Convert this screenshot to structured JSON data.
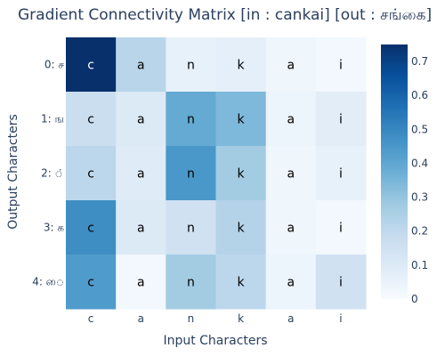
{
  "chart_data": {
    "type": "heatmap",
    "title": "Gradient Connectivity Matrix [in : cankai] [out : சங்கை]",
    "xlabel": "Input Characters",
    "ylabel": "Output Characters",
    "x_tick_labels": [
      "c",
      "a",
      "n",
      "k",
      "a",
      "i"
    ],
    "y_tick_labels": [
      "0: ச",
      "1: ங",
      "2: ்",
      "3: க",
      "4: ை"
    ],
    "cell_text": [
      "c",
      "a",
      "n",
      "k",
      "a",
      "i"
    ],
    "values": [
      [
        0.75,
        0.22,
        0.06,
        0.07,
        0.03,
        0.02
      ],
      [
        0.17,
        0.1,
        0.39,
        0.34,
        0.04,
        0.08
      ],
      [
        0.21,
        0.09,
        0.45,
        0.27,
        0.03,
        0.06
      ],
      [
        0.48,
        0.1,
        0.15,
        0.23,
        0.03,
        0.02
      ],
      [
        0.44,
        0.02,
        0.27,
        0.21,
        0.04,
        0.15
      ]
    ],
    "zlim": [
      0,
      0.75
    ],
    "colorbar_ticks": [
      0,
      0.1,
      0.2,
      0.3,
      0.4,
      0.5,
      0.6,
      0.7
    ],
    "colorscale": "Blues",
    "colorscale_stops": [
      [
        0.0,
        "#f7fbff"
      ],
      [
        0.125,
        "#deebf7"
      ],
      [
        0.25,
        "#c6dbef"
      ],
      [
        0.375,
        "#9ecae1"
      ],
      [
        0.5,
        "#6baed6"
      ],
      [
        0.625,
        "#4292c6"
      ],
      [
        0.75,
        "#2171b5"
      ],
      [
        0.875,
        "#08519c"
      ],
      [
        1.0,
        "#08306b"
      ]
    ]
  }
}
